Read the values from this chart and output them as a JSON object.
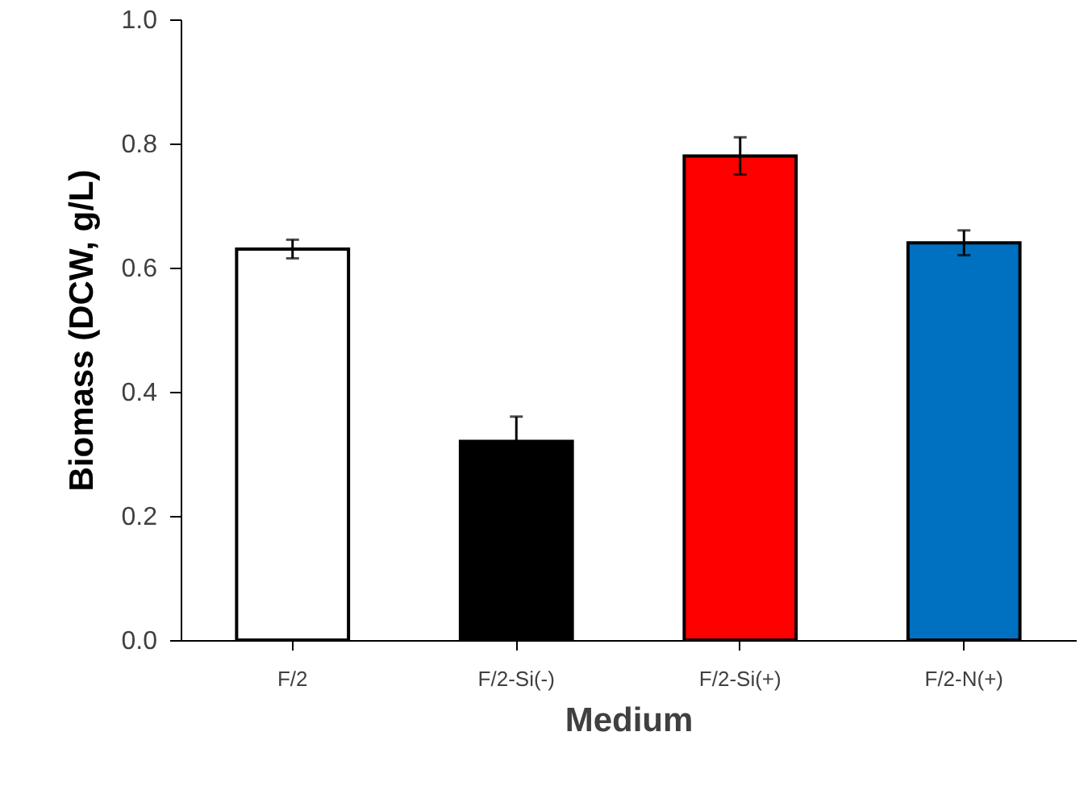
{
  "chart_data": {
    "type": "bar",
    "xlabel": "Medium",
    "ylabel": "Biomass (DCW, g/L)",
    "categories": [
      "F/2",
      "F/2-Si(-)",
      "F/2-Si(+)",
      "F/2-N(+)"
    ],
    "values": [
      0.63,
      0.32,
      0.78,
      0.64
    ],
    "colors": [
      "#ffffff",
      "#000000",
      "#ff0000",
      "#0070c0"
    ],
    "errors": [
      0.015,
      0.04,
      0.03,
      0.02
    ],
    "ylim": [
      0,
      1
    ],
    "yticks": [
      {
        "value": 0,
        "label": "0.0"
      },
      0.2,
      0.4,
      0.6,
      0.8,
      {
        "value": 1,
        "label": "1.0"
      }
    ],
    "grid": false
  }
}
